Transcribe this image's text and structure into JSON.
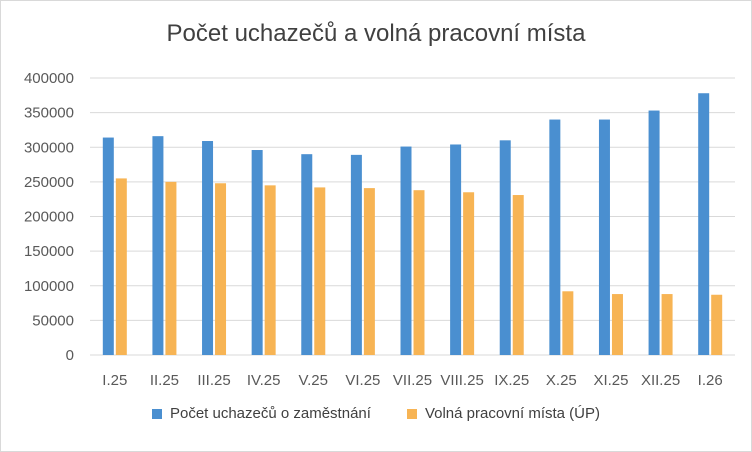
{
  "chart_data": {
    "type": "bar",
    "title": "Počet uchazečů a volná pracovní místa",
    "xlabel": "",
    "ylabel": "",
    "ylim": [
      0,
      400000
    ],
    "y_ticks": [
      "400000",
      "350000",
      "300000",
      "250000",
      "200000",
      "150000",
      "100000",
      "50000",
      "0"
    ],
    "grid": true,
    "legend_position": "bottom",
    "categories": [
      "I.25",
      "II.25",
      "III.25",
      "IV.25",
      "V.25",
      "VI.25",
      "VII.25",
      "VIII.25",
      "IX.25",
      "X.25",
      "XI.25",
      "XII.25",
      "I.26"
    ],
    "series": [
      {
        "name": "Počet uchazečů o zaměstnání",
        "color": "#4a8fd0",
        "values": [
          314000,
          316000,
          309000,
          296000,
          290000,
          289000,
          301000,
          304000,
          310000,
          340000,
          340000,
          353000,
          378000
        ]
      },
      {
        "name": "Volná pracovní místa (ÚP)",
        "color": "#f7b454",
        "values": [
          255000,
          250000,
          248000,
          245000,
          242000,
          241000,
          238000,
          235000,
          231000,
          92000,
          88000,
          88000,
          87000
        ]
      }
    ]
  }
}
